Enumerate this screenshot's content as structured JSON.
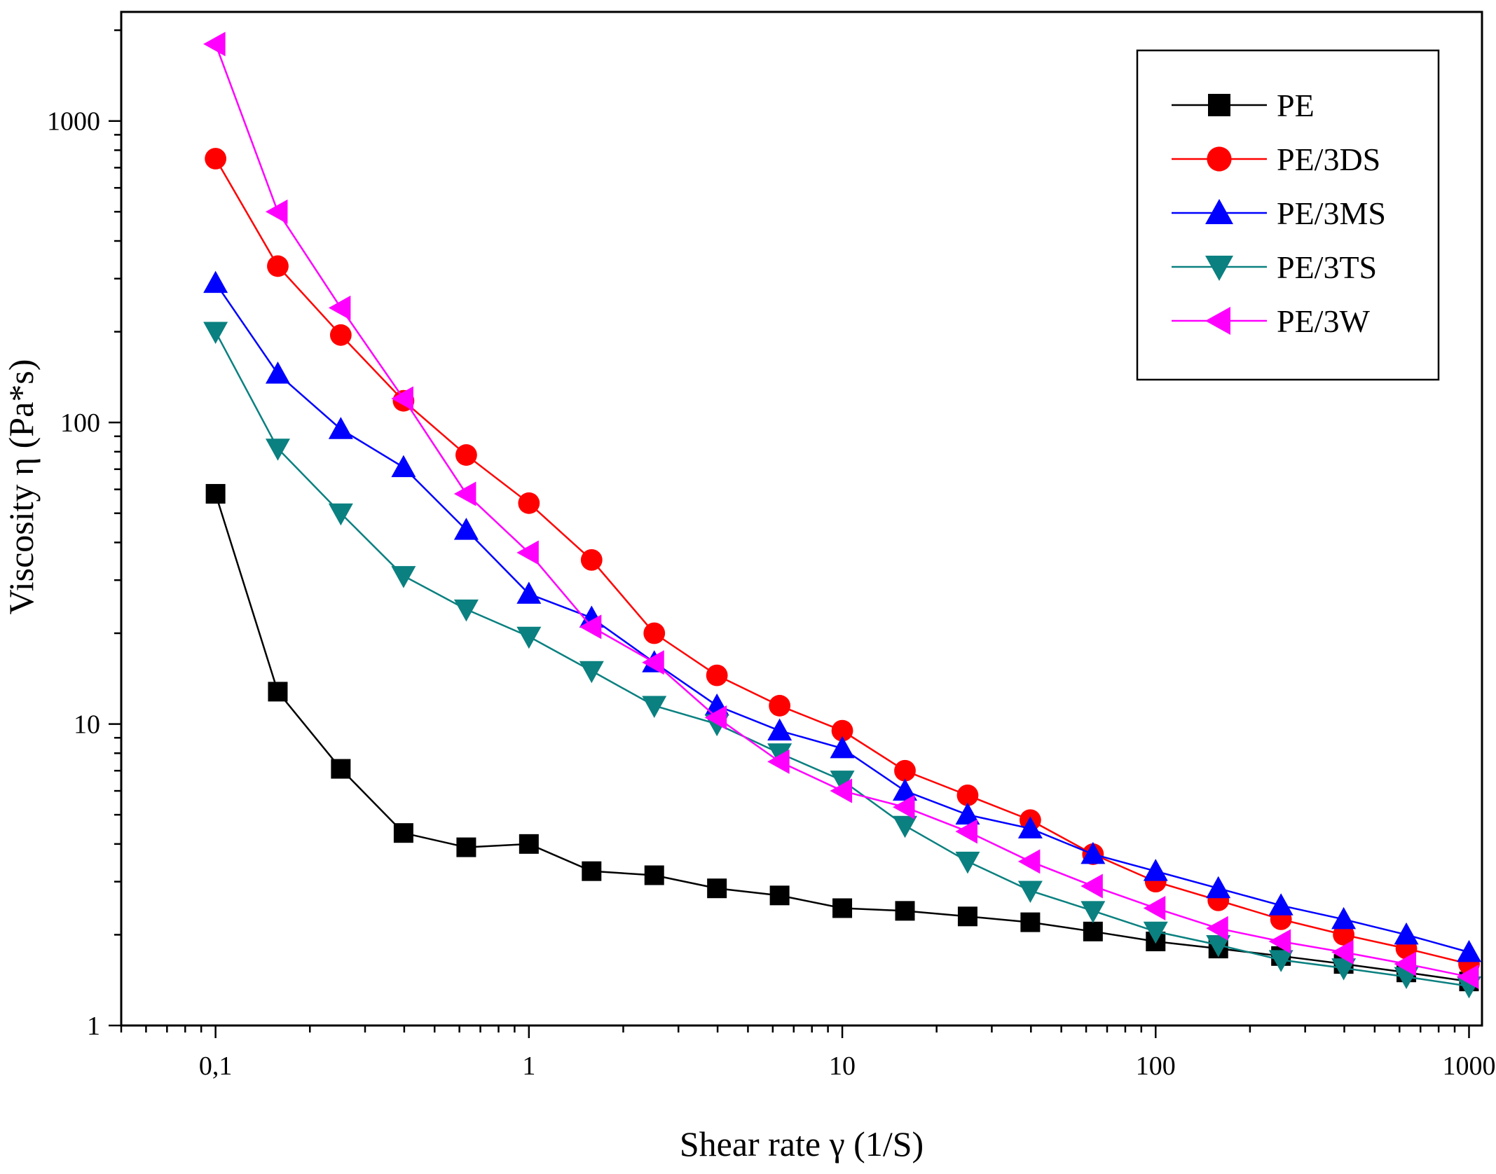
{
  "chart_data": {
    "type": "line",
    "title": "",
    "xlabel": "Shear rate γ (1/S)",
    "ylabel": "Viscosity η (Pa*s)",
    "xscale": "log",
    "yscale": "log",
    "xlim": [
      0.05,
      1100
    ],
    "ylim": [
      1,
      2300
    ],
    "xticks": [
      {
        "value": 0.1,
        "label": "0,1"
      },
      {
        "value": 1,
        "label": "1"
      },
      {
        "value": 10,
        "label": "10"
      },
      {
        "value": 100,
        "label": "100"
      },
      {
        "value": 1000,
        "label": "1000"
      }
    ],
    "yticks": [
      {
        "value": 1,
        "label": "1"
      },
      {
        "value": 10,
        "label": "10"
      },
      {
        "value": 100,
        "label": "100"
      },
      {
        "value": 1000,
        "label": "1000"
      }
    ],
    "legend_position": "top-right",
    "x": [
      0.1,
      0.158,
      0.251,
      0.398,
      0.631,
      1,
      1.585,
      2.512,
      3.981,
      6.31,
      10,
      15.85,
      25.12,
      39.81,
      63.1,
      100,
      158.5,
      251.2,
      398.1,
      631,
      1000
    ],
    "series": [
      {
        "name": "PE",
        "color": "#000000",
        "marker": "square",
        "values": [
          58,
          12.8,
          7.1,
          4.35,
          3.9,
          4.0,
          3.25,
          3.15,
          2.85,
          2.7,
          2.45,
          2.4,
          2.3,
          2.2,
          2.05,
          1.9,
          1.8,
          1.7,
          1.6,
          1.5,
          1.4
        ]
      },
      {
        "name": "PE/3DS",
        "color": "#ff0000",
        "marker": "circle",
        "values": [
          750,
          330,
          195,
          118,
          78,
          54,
          35,
          20,
          14.5,
          11.5,
          9.5,
          7.0,
          5.8,
          4.8,
          3.7,
          3.0,
          2.6,
          2.25,
          2.0,
          1.8,
          1.6
        ]
      },
      {
        "name": "PE/3MS",
        "color": "#0000ff",
        "marker": "triangle-up",
        "values": [
          290,
          145,
          95,
          71,
          44,
          27,
          22.5,
          16,
          11.5,
          9.5,
          8.3,
          6.0,
          5.0,
          4.5,
          3.7,
          3.25,
          2.85,
          2.5,
          2.25,
          2.0,
          1.75
        ]
      },
      {
        "name": "PE/3TS",
        "color": "#0b8080",
        "marker": "triangle-down",
        "values": [
          200,
          82,
          50,
          31,
          24,
          19.5,
          15,
          11.5,
          10,
          8.0,
          6.5,
          4.6,
          3.5,
          2.8,
          2.4,
          2.05,
          1.85,
          1.65,
          1.55,
          1.45,
          1.35
        ]
      },
      {
        "name": "PE/3W",
        "color": "#ff00ff",
        "marker": "triangle-left",
        "values": [
          1800,
          500,
          240,
          120,
          58,
          37,
          21,
          16,
          10.5,
          7.5,
          6.0,
          5.3,
          4.4,
          3.5,
          2.9,
          2.45,
          2.1,
          1.9,
          1.75,
          1.6,
          1.45
        ]
      }
    ]
  }
}
